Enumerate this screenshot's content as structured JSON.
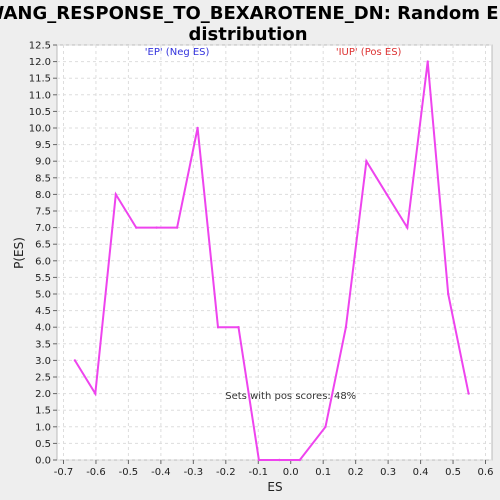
{
  "chart_data": {
    "type": "line",
    "title_lines": [
      "WANG_RESPONSE_TO_BEXAROTENE_DN: Random ES",
      "distribution"
    ],
    "xlabel": "ES",
    "ylabel": "P(ES)",
    "xlim": [
      -0.72,
      0.62
    ],
    "ylim": [
      0,
      12.5
    ],
    "x_ticks": [
      -0.7,
      -0.6,
      -0.5,
      -0.4,
      -0.3,
      -0.2,
      -0.1,
      0.0,
      0.1,
      0.2,
      0.3,
      0.4,
      0.5,
      0.6
    ],
    "x_tick_labels": [
      "-0.7",
      "-0.6",
      "-0.5",
      "-0.4",
      "-0.3",
      "-0.2",
      "-0.1",
      "0.0",
      "0.1",
      "0.2",
      "0.3",
      "0.4",
      "0.5",
      "0.6"
    ],
    "y_ticks": [
      0.0,
      0.5,
      1.0,
      1.5,
      2.0,
      2.5,
      3.0,
      3.5,
      4.0,
      4.5,
      5.0,
      5.5,
      6.0,
      6.5,
      7.0,
      7.5,
      8.0,
      8.5,
      9.0,
      9.5,
      10.0,
      10.5,
      11.0,
      11.5,
      12.0,
      12.5
    ],
    "y_tick_labels": [
      "0.0",
      "0.5",
      "1.0",
      "1.5",
      "2.0",
      "2.5",
      "3.0",
      "3.5",
      "4.0",
      "4.5",
      "5.0",
      "5.5",
      "6.0",
      "6.5",
      "7.0",
      "7.5",
      "8.0",
      "8.5",
      "9.0",
      "9.5",
      "10.0",
      "10.5",
      "11.0",
      "11.5",
      "12.0",
      "12.5"
    ],
    "grid": true,
    "series": [
      {
        "color": "#ee44ee",
        "points": [
          {
            "x": -0.665,
            "y": 3.0
          },
          {
            "x": -0.602,
            "y": 2.0
          },
          {
            "x": -0.539,
            "y": 8.0
          },
          {
            "x": -0.476,
            "y": 7.0
          },
          {
            "x": -0.413,
            "y": 7.0
          },
          {
            "x": -0.35,
            "y": 7.0
          },
          {
            "x": -0.287,
            "y": 10.0
          },
          {
            "x": -0.224,
            "y": 4.0
          },
          {
            "x": -0.161,
            "y": 4.0
          },
          {
            "x": -0.098,
            "y": 0.0
          },
          {
            "x": -0.035,
            "y": 0.0
          },
          {
            "x": 0.028,
            "y": 0.0
          },
          {
            "x": 0.107,
            "y": 1.0
          },
          {
            "x": 0.17,
            "y": 4.0
          },
          {
            "x": 0.233,
            "y": 9.0
          },
          {
            "x": 0.296,
            "y": 8.0
          },
          {
            "x": 0.359,
            "y": 7.0
          },
          {
            "x": 0.422,
            "y": 12.0
          },
          {
            "x": 0.485,
            "y": 5.0
          },
          {
            "x": 0.548,
            "y": 2.0
          }
        ]
      }
    ],
    "annotations": [
      {
        "text": "'EP' (Neg ES)",
        "color": "#3333dd",
        "x": -0.35,
        "y": 12.3
      },
      {
        "text": "'IUP' (Pos ES)",
        "color": "#dd3333",
        "x": 0.24,
        "y": 12.3
      },
      {
        "text": "Sets with pos scores: 48%",
        "color": "#333333",
        "x": 0.0,
        "y": 1.95
      }
    ]
  }
}
